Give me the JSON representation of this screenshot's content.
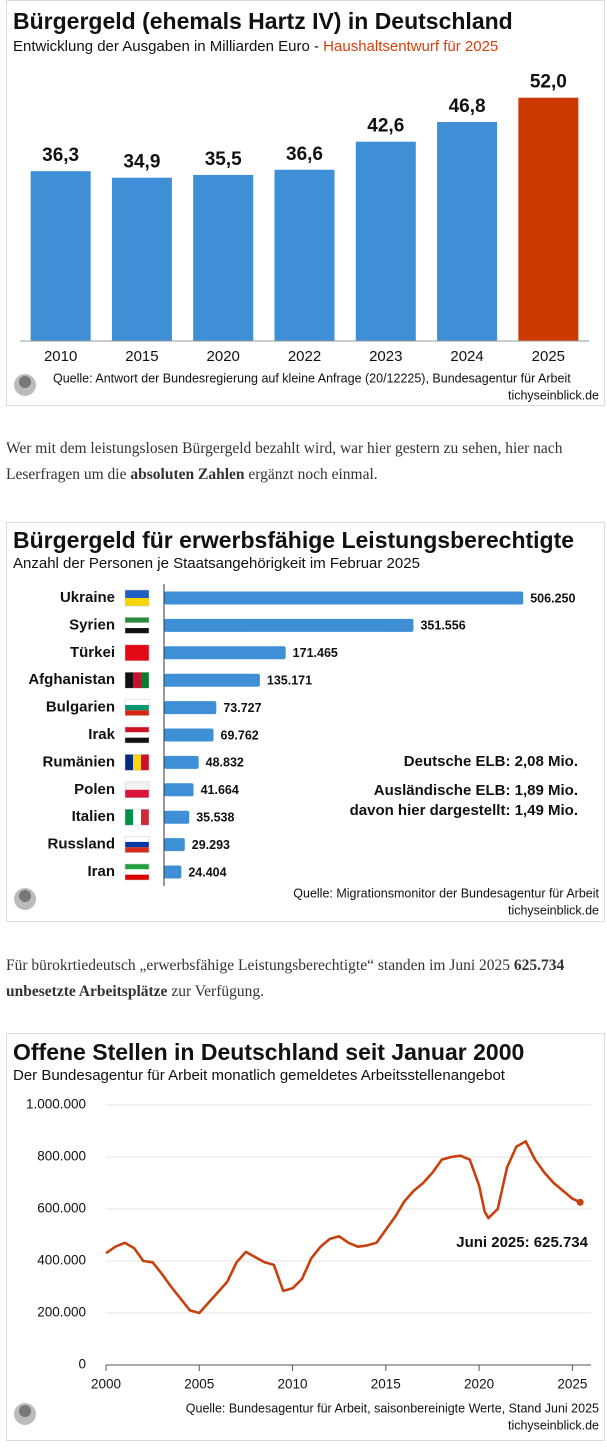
{
  "chart_data": [
    {
      "type": "bar",
      "title": "Bürgergeld (ehemals Hartz IV) in Deutschland",
      "subtitle": "Entwicklung der Ausgaben in Milliarden Euro -",
      "subtitle_highlight": "Haushaltsentwurf für 2025",
      "categories": [
        "2010",
        "2015",
        "2020",
        "2022",
        "2023",
        "2024",
        "2025"
      ],
      "values": [
        36.3,
        34.9,
        35.5,
        36.6,
        42.6,
        46.8,
        52.0
      ],
      "value_labels": [
        "36,3",
        "34,9",
        "35,5",
        "36,6",
        "42,6",
        "46,8",
        "52,0"
      ],
      "colors": [
        "#3f8fd6",
        "#3f8fd6",
        "#3f8fd6",
        "#3f8fd6",
        "#3f8fd6",
        "#3f8fd6",
        "#cc3a00"
      ],
      "highlight_color": "#d4400e",
      "ylim": [
        0,
        56
      ],
      "source": "Quelle: Antwort der Bundesregierung auf kleine Anfrage (20/12225), Bundesagentur für Arbeit",
      "site": "tichyseinblick.de"
    },
    {
      "type": "bar",
      "orientation": "horizontal",
      "title": "Bürgergeld für erwerbsfähige Leistungsberechtigte",
      "subtitle": "Anzahl der Personen je Staatsangehörigkeit im Februar 2025",
      "categories": [
        "Ukraine",
        "Syrien",
        "Türkei",
        "Afghanistan",
        "Bulgarien",
        "Irak",
        "Rumänien",
        "Polen",
        "Italien",
        "Russland",
        "Iran"
      ],
      "values": [
        506250,
        351556,
        171465,
        135171,
        73727,
        69762,
        48832,
        41664,
        35538,
        29293,
        24404
      ],
      "value_labels": [
        "506.250",
        "351.556",
        "171.465",
        "135.171",
        "73.727",
        "69.762",
        "48.832",
        "41.664",
        "35.538",
        "29.293",
        "24.404"
      ],
      "color": "#3f8fd6",
      "xlim": [
        0,
        520000
      ],
      "annotations": [
        {
          "text": "Deutsche ELB: 2,08 Mio.",
          "color": "#d4400e"
        },
        {
          "text": "Ausländische ELB: 1,89 Mio.",
          "color": "#444444"
        },
        {
          "text": "davon hier dargestellt: 1,49 Mio.",
          "color": "#3f8fd6"
        }
      ],
      "source": "Quelle: Migrationsmonitor der Bundesagentur für Arbeit",
      "site": "tichyseinblick.de"
    },
    {
      "type": "line",
      "title": "Offene Stellen in Deutschland seit Januar 2000",
      "subtitle": "Der Bundesagentur für Arbeit monatlich gemeldetes Arbeitsstellenangebot",
      "x": [
        2000,
        2000.5,
        2001,
        2001.5,
        2002,
        2002.5,
        2003,
        2003.5,
        2004,
        2004.5,
        2005,
        2005.5,
        2006,
        2006.5,
        2007,
        2007.5,
        2008,
        2008.5,
        2009,
        2009.5,
        2010,
        2010.5,
        2011,
        2011.5,
        2012,
        2012.5,
        2013,
        2013.5,
        2014,
        2014.5,
        2015,
        2015.5,
        2016,
        2016.5,
        2017,
        2017.5,
        2018,
        2018.5,
        2019,
        2019.5,
        2020,
        2020.3,
        2020.5,
        2021,
        2021.5,
        2022,
        2022.5,
        2023,
        2023.5,
        2024,
        2024.5,
        2025,
        2025.42
      ],
      "values": [
        430000,
        455000,
        470000,
        450000,
        400000,
        395000,
        350000,
        300000,
        255000,
        210000,
        200000,
        240000,
        280000,
        320000,
        395000,
        435000,
        415000,
        395000,
        385000,
        285000,
        295000,
        330000,
        410000,
        455000,
        485000,
        495000,
        470000,
        455000,
        460000,
        470000,
        520000,
        570000,
        630000,
        670000,
        700000,
        740000,
        790000,
        800000,
        805000,
        790000,
        690000,
        590000,
        565000,
        600000,
        760000,
        840000,
        860000,
        790000,
        740000,
        700000,
        670000,
        640000,
        625734
      ],
      "color": "#c8400e",
      "xlim": [
        2000,
        2026
      ],
      "xticks": [
        2000,
        2005,
        2010,
        2015,
        2020,
        2025
      ],
      "ylim": [
        0,
        1000000
      ],
      "yticks": [
        0,
        {
          "value": 200000,
          "label": "200.000"
        },
        {
          "value": 400000,
          "label": "400.000"
        },
        {
          "value": 600000,
          "label": "600.000"
        },
        {
          "value": 800000,
          "label": "800.000"
        },
        {
          "value": 1000000,
          "label": "1.000.000"
        }
      ],
      "grid": true,
      "annotations": [
        {
          "text": "Juni 2025: 625.734",
          "color": "#c8400e"
        }
      ],
      "source": "Quelle: Bundesagentur für Arbeit, saisonbereinigte Werte, Stand Juni 2025",
      "site": "tichyseinblick.de"
    }
  ],
  "paragraphs": [
    [
      "Wer mit dem leistungslosen Bürgergeld bezahlt wird, war hier gestern zu sehen, hier nach Leserfragen um die ",
      "absoluten Zahlen",
      " ergänzt noch einmal."
    ],
    [
      "Für bürokrtiedeutsch „erwerbsfähige Leistungsberechtigte“ standen im Juni 2025 ",
      "625.734 unbesetzte Arbeitsplätze",
      " zur Verfügung."
    ]
  ]
}
